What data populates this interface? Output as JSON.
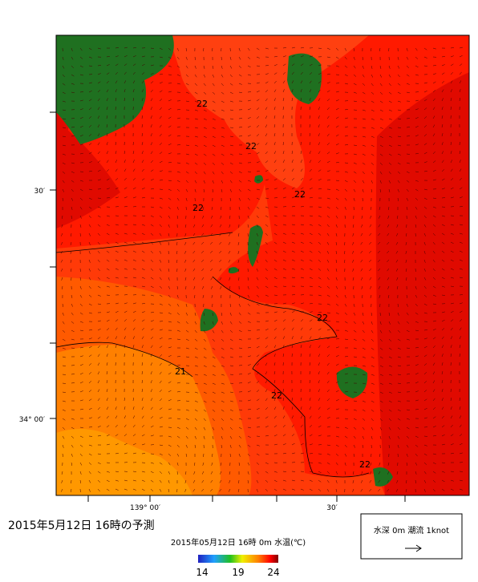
{
  "map": {
    "lat_labels": [
      "30′",
      "34° 00′"
    ],
    "lon_labels": [
      "139° 00′",
      "30′"
    ],
    "contour_labels": [
      "22",
      "22",
      "22",
      "22",
      "22",
      "21",
      "22",
      "22"
    ],
    "title": "2015年5月12日  16時の予測",
    "subtitle": "2015年05月12日 16時 0m 水温(℃)",
    "colorbar_ticks": [
      "14",
      "19",
      "24"
    ],
    "legend": "水深 0m 潮流 1knot"
  }
}
